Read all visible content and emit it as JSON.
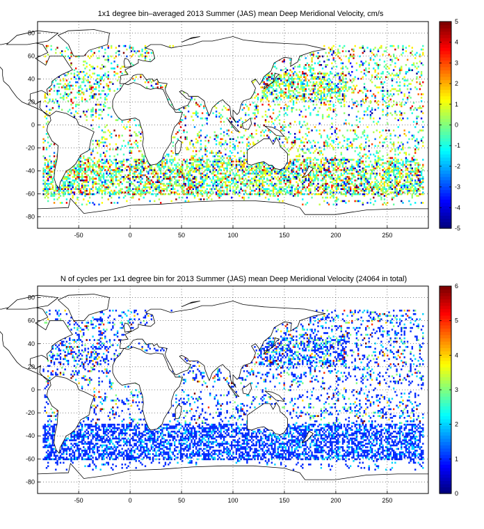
{
  "chart_data": [
    {
      "type": "heatmap",
      "title": "1x1 degree bin–averaged 2013 Summer (JAS) mean Deep Meridional Velocity, cm/s",
      "xlabel": "",
      "ylabel": "",
      "xlim": [
        -90,
        290
      ],
      "ylim": [
        -90,
        90
      ],
      "x_ticks": [
        -50,
        0,
        50,
        100,
        150,
        200,
        250
      ],
      "y_ticks": [
        80,
        60,
        40,
        20,
        0,
        -20,
        -40,
        -60,
        -80
      ],
      "grid": true,
      "grid_style": "dotted",
      "colormap": "jet",
      "colorbar": {
        "min": -5,
        "max": 5,
        "ticks": [
          5,
          4,
          3,
          2,
          1,
          0,
          -1,
          -2,
          -3,
          -4,
          -5
        ]
      },
      "basemap": "world-coastlines",
      "note_values": "dense scattered 1x1 degree bins; most values between -2 and 2 cm/s, extremes near +-5 in Southern Ocean and Kuroshio"
    },
    {
      "type": "heatmap",
      "title": "N of cycles per 1x1 degree bin for 2013 Summer (JAS) mean Deep Meridional Velocity (24064 in total)",
      "xlabel": "",
      "ylabel": "",
      "xlim": [
        -90,
        290
      ],
      "ylim": [
        -90,
        90
      ],
      "x_ticks": [
        -50,
        0,
        50,
        100,
        150,
        200,
        250
      ],
      "y_ticks": [
        80,
        60,
        40,
        20,
        0,
        -20,
        -40,
        -60,
        -80
      ],
      "grid": true,
      "grid_style": "dotted",
      "colormap": "jet",
      "colorbar": {
        "min": 0,
        "max": 6,
        "ticks": [
          6,
          5,
          4,
          3,
          2,
          1,
          0
        ]
      },
      "basemap": "world-coastlines",
      "total_cycles": 24064
    }
  ],
  "colors": {
    "coast": "#000000",
    "grid": "#000000",
    "background": "#ffffff"
  }
}
